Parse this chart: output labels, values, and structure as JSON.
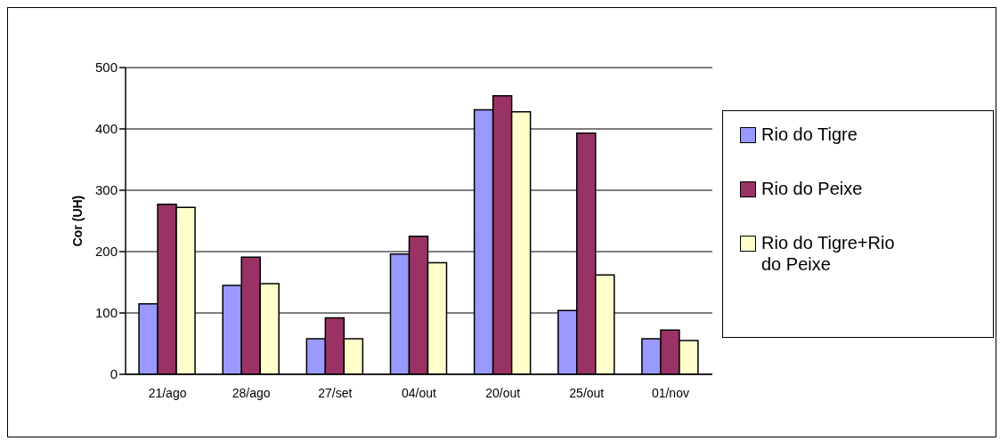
{
  "chart_data": {
    "type": "bar",
    "ylabel": "Cor (UH)",
    "categories": [
      "21/ago",
      "28/ago",
      "27/set",
      "04/out",
      "20/out",
      "25/out",
      "01/nov"
    ],
    "series": [
      {
        "name": "Rio do Tigre",
        "color": "#9999ff",
        "values": [
          115,
          145,
          58,
          196,
          431,
          104,
          58
        ]
      },
      {
        "name": "Rio do Peixe",
        "color": "#993366",
        "values": [
          277,
          191,
          92,
          225,
          454,
          393,
          72
        ]
      },
      {
        "name": "Rio do Tigre+Rio do Peixe",
        "color": "#ffffcc",
        "values": [
          272,
          148,
          58,
          182,
          428,
          162,
          55
        ]
      }
    ],
    "ylim": [
      0,
      500
    ],
    "yticks": [
      0,
      100,
      200,
      300,
      400,
      500
    ],
    "grid": "y",
    "legend": "right"
  }
}
